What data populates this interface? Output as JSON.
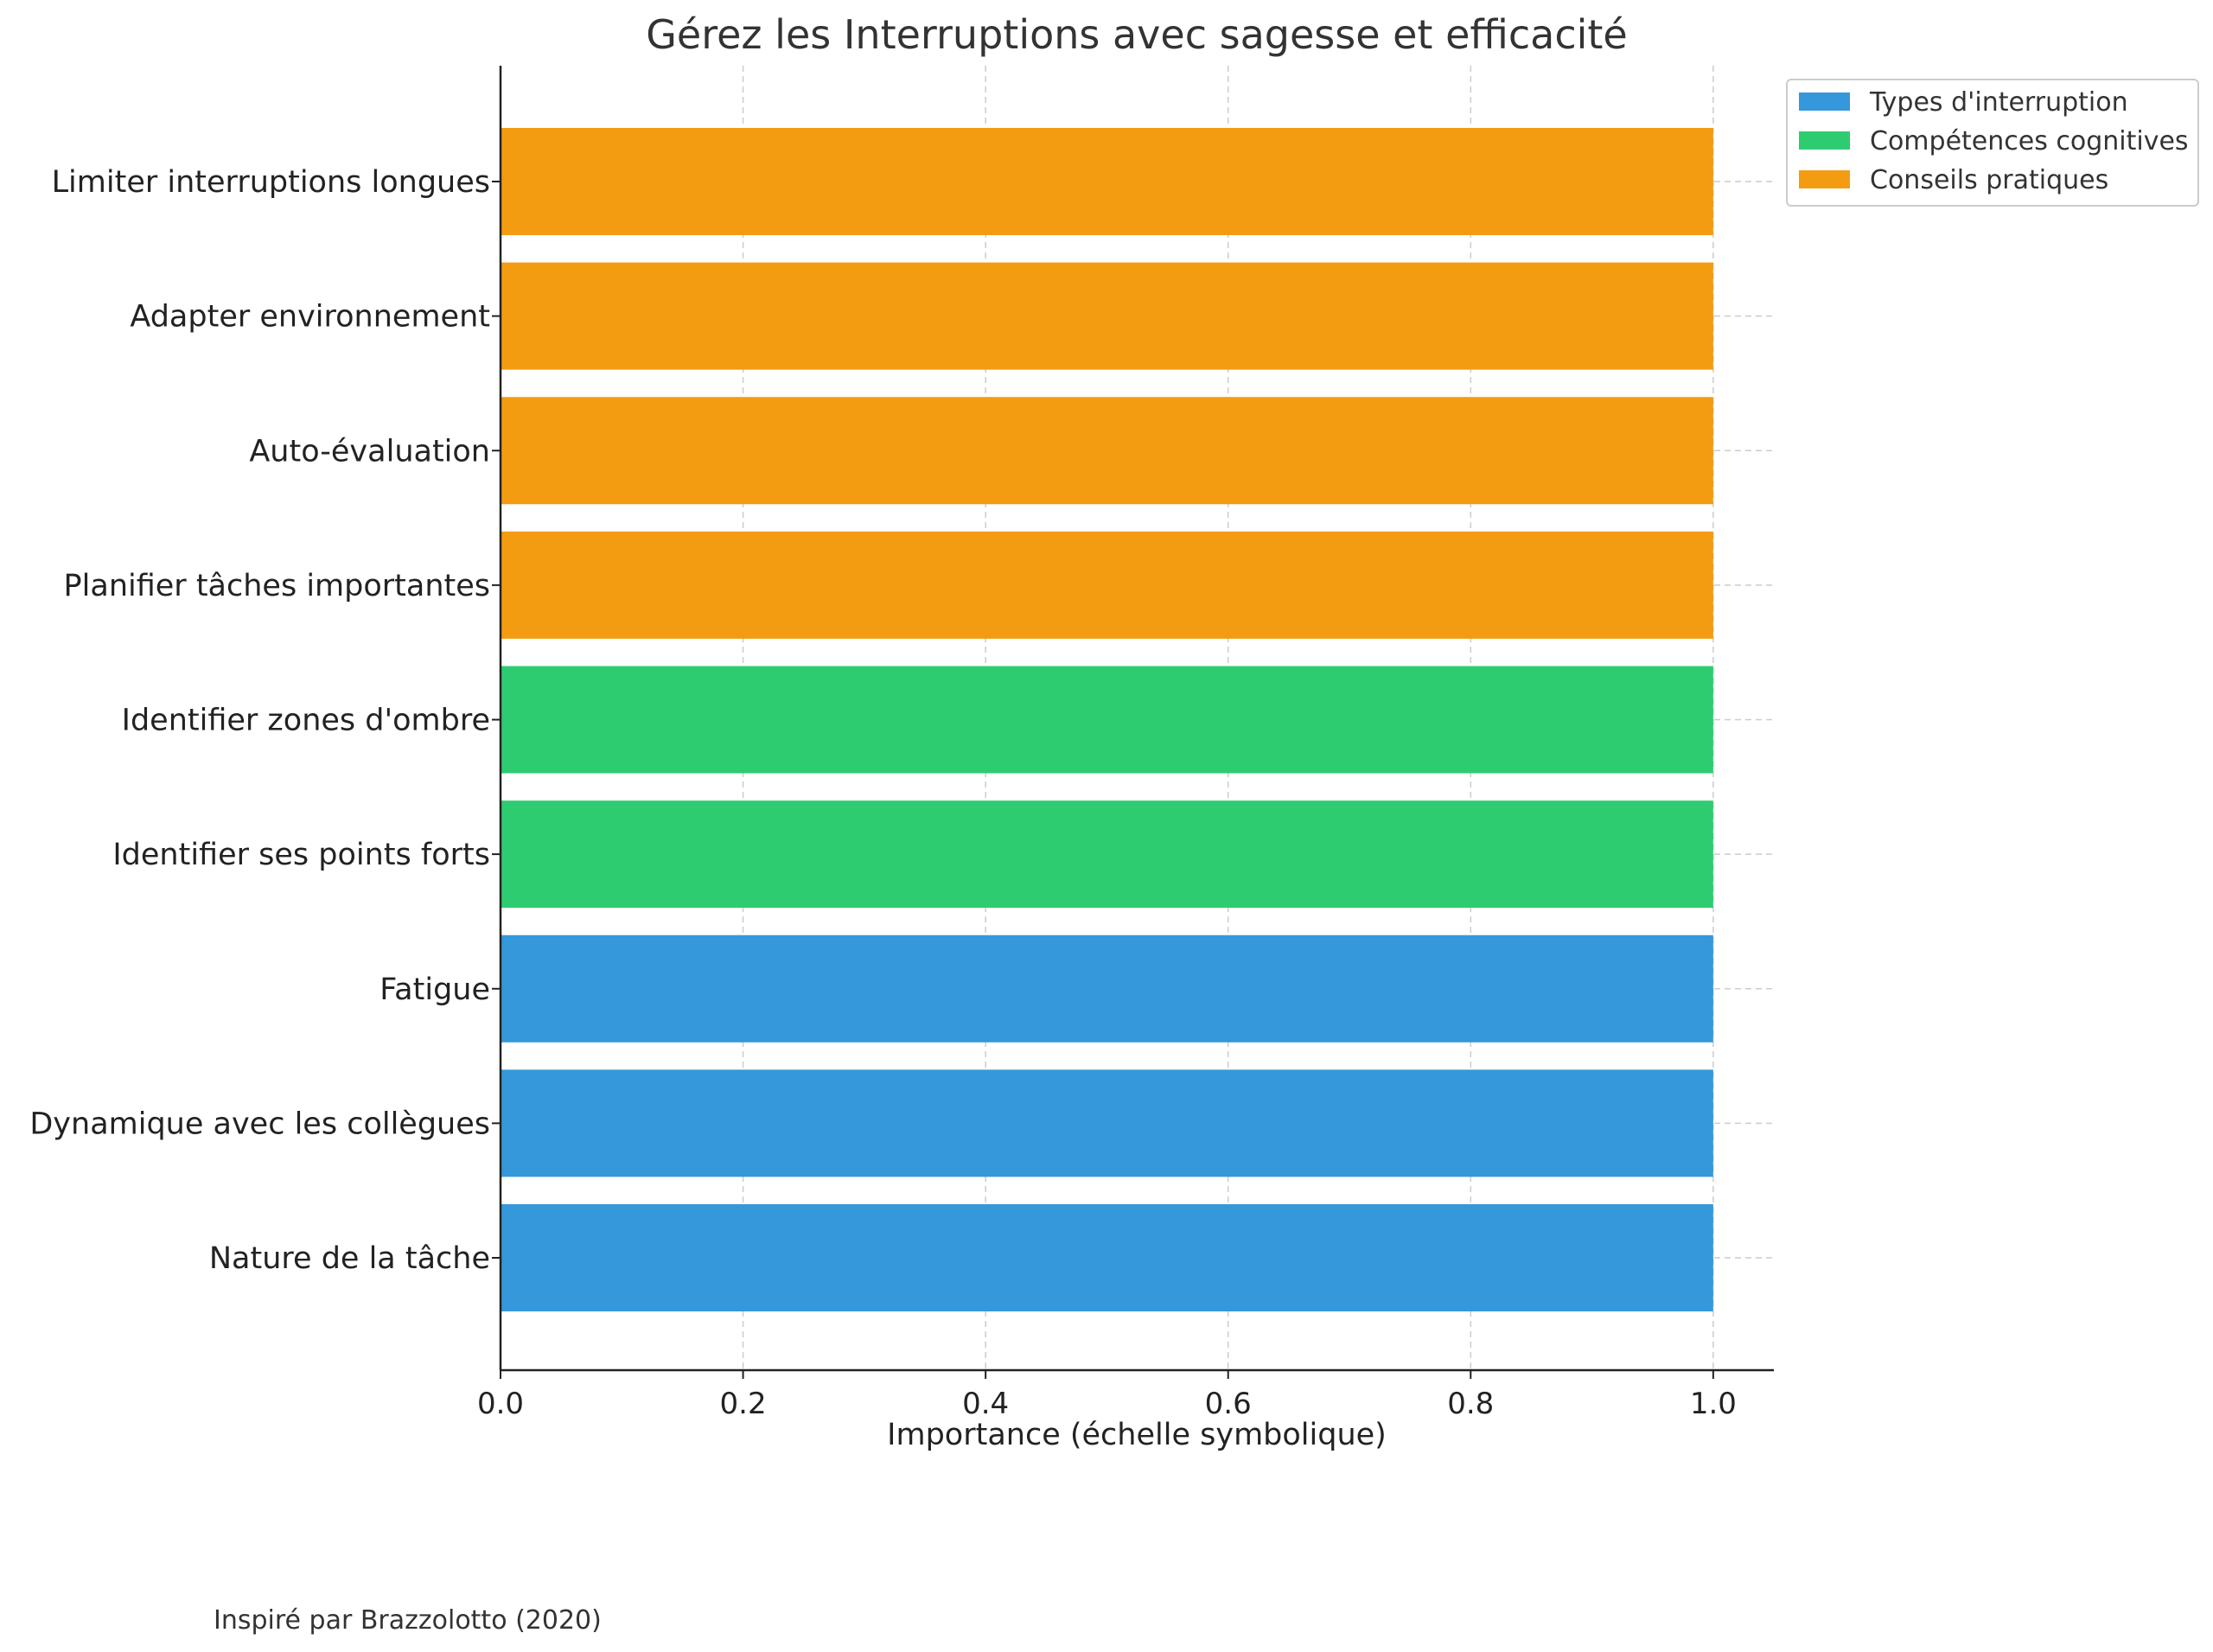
{
  "chart_data": {
    "type": "bar",
    "orientation": "horizontal",
    "title": "Gérez les Interruptions avec sagesse et efficacité",
    "xlabel": "Importance (échelle symbolique)",
    "ylabel": "",
    "xlim": [
      0,
      1.05
    ],
    "xticks": [
      "0.0",
      "0.2",
      "0.4",
      "0.6",
      "0.8",
      "1.0"
    ],
    "grid": true,
    "legend_position": "top-right, outside",
    "series": [
      {
        "name": "Types d'interruption",
        "color": "#3498db"
      },
      {
        "name": "Compétences cognitives",
        "color": "#2ecc71"
      },
      {
        "name": "Conseils pratiques",
        "color": "#f39c12"
      }
    ],
    "bars": [
      {
        "label": "Nature de la tâche",
        "value": 1.0,
        "series": 0
      },
      {
        "label": "Dynamique avec les collègues",
        "value": 1.0,
        "series": 0
      },
      {
        "label": "Fatigue",
        "value": 1.0,
        "series": 0
      },
      {
        "label": "Identifier ses points forts",
        "value": 1.0,
        "series": 1
      },
      {
        "label": "Identifier zones d'ombre",
        "value": 1.0,
        "series": 1
      },
      {
        "label": "Planifier tâches importantes",
        "value": 1.0,
        "series": 2
      },
      {
        "label": "Auto-évaluation",
        "value": 1.0,
        "series": 2
      },
      {
        "label": "Adapter environnement",
        "value": 1.0,
        "series": 2
      },
      {
        "label": "Limiter interruptions longues",
        "value": 1.0,
        "series": 2
      }
    ]
  },
  "caption": "Inspiré par Brazzolotto (2020)"
}
